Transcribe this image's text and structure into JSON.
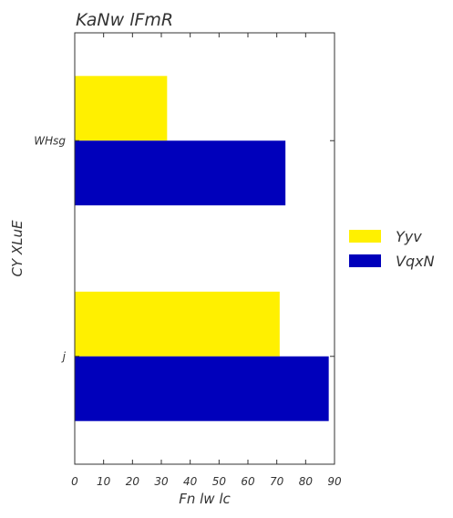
{
  "chart_data": {
    "type": "bar",
    "orientation": "horizontal",
    "title": "KaNw lFmR",
    "xlabel": "Fn lw lc",
    "ylabel": "CY XLuE",
    "categories": [
      "WHsg",
      "j"
    ],
    "series": [
      {
        "name": "Yyv",
        "values": [
          32,
          71
        ],
        "color": "#fff000"
      },
      {
        "name": "VqxN",
        "values": [
          73,
          88
        ],
        "color": "#0000bb"
      }
    ],
    "xlim": [
      0,
      90
    ],
    "xticks": [
      0,
      10,
      20,
      30,
      40,
      50,
      60,
      70,
      80,
      90
    ],
    "grid": false,
    "legend_position": "right"
  }
}
